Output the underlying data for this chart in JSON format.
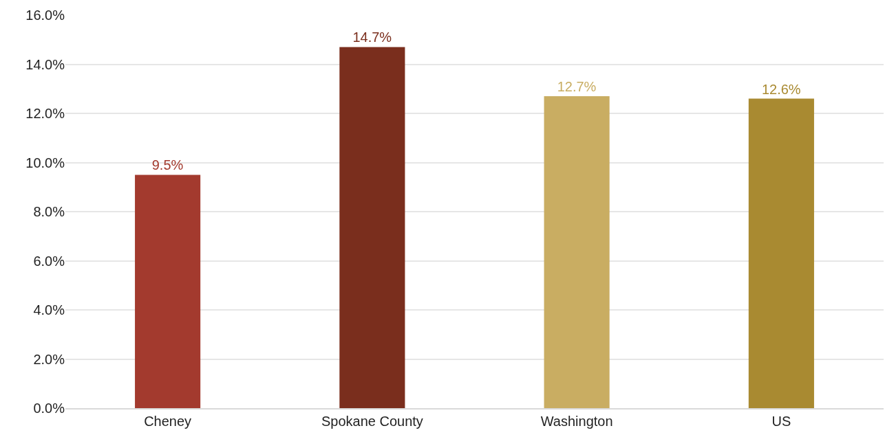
{
  "chart_data": {
    "type": "bar",
    "categories": [
      "Cheney",
      "Spokane County",
      "Washington",
      "US"
    ],
    "values": [
      9.5,
      14.7,
      12.7,
      12.6
    ],
    "colors": [
      "#a33a2e",
      "#7a2e1d",
      "#c9ad62",
      "#a98a31"
    ],
    "value_labels": [
      "9.5%",
      "14.7%",
      "12.7%",
      "12.6%"
    ],
    "ylim": [
      0,
      16
    ],
    "yticks": [
      {
        "value": 0,
        "label": "0.0%"
      },
      {
        "value": 2,
        "label": "2.0%"
      },
      {
        "value": 4,
        "label": "4.0%"
      },
      {
        "value": 6,
        "label": "6.0%"
      },
      {
        "value": 8,
        "label": "8.0%"
      },
      {
        "value": 10,
        "label": "10.0%"
      },
      {
        "value": 12,
        "label": "12.0%"
      },
      {
        "value": 14,
        "label": "14.0%"
      },
      {
        "value": 16,
        "label": "16.0%"
      }
    ],
    "grid": "y",
    "legend": false
  }
}
